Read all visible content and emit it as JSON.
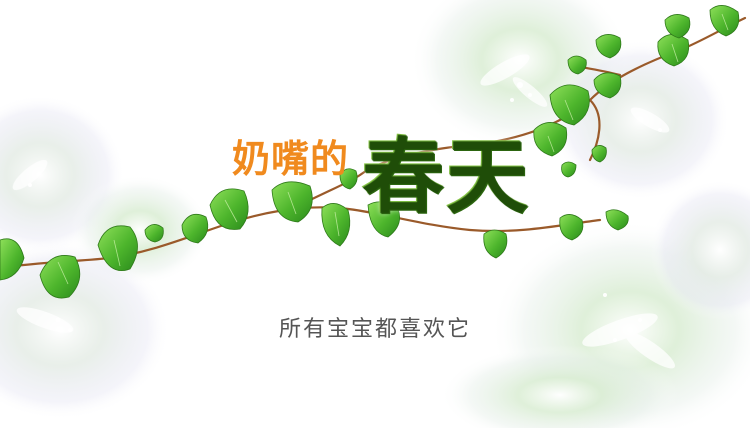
{
  "title": {
    "part1": "奶嘴的",
    "part2": "春天",
    "part1_color": "#f08a1e",
    "part2_color": "#4b8f1f"
  },
  "subtitle": "所有宝宝都喜欢它",
  "palette": {
    "leaf": "#5fbf3a",
    "leaf_dark": "#2f8a1e",
    "vine": "#9a5a2a",
    "flower": "#cfe6c4"
  }
}
